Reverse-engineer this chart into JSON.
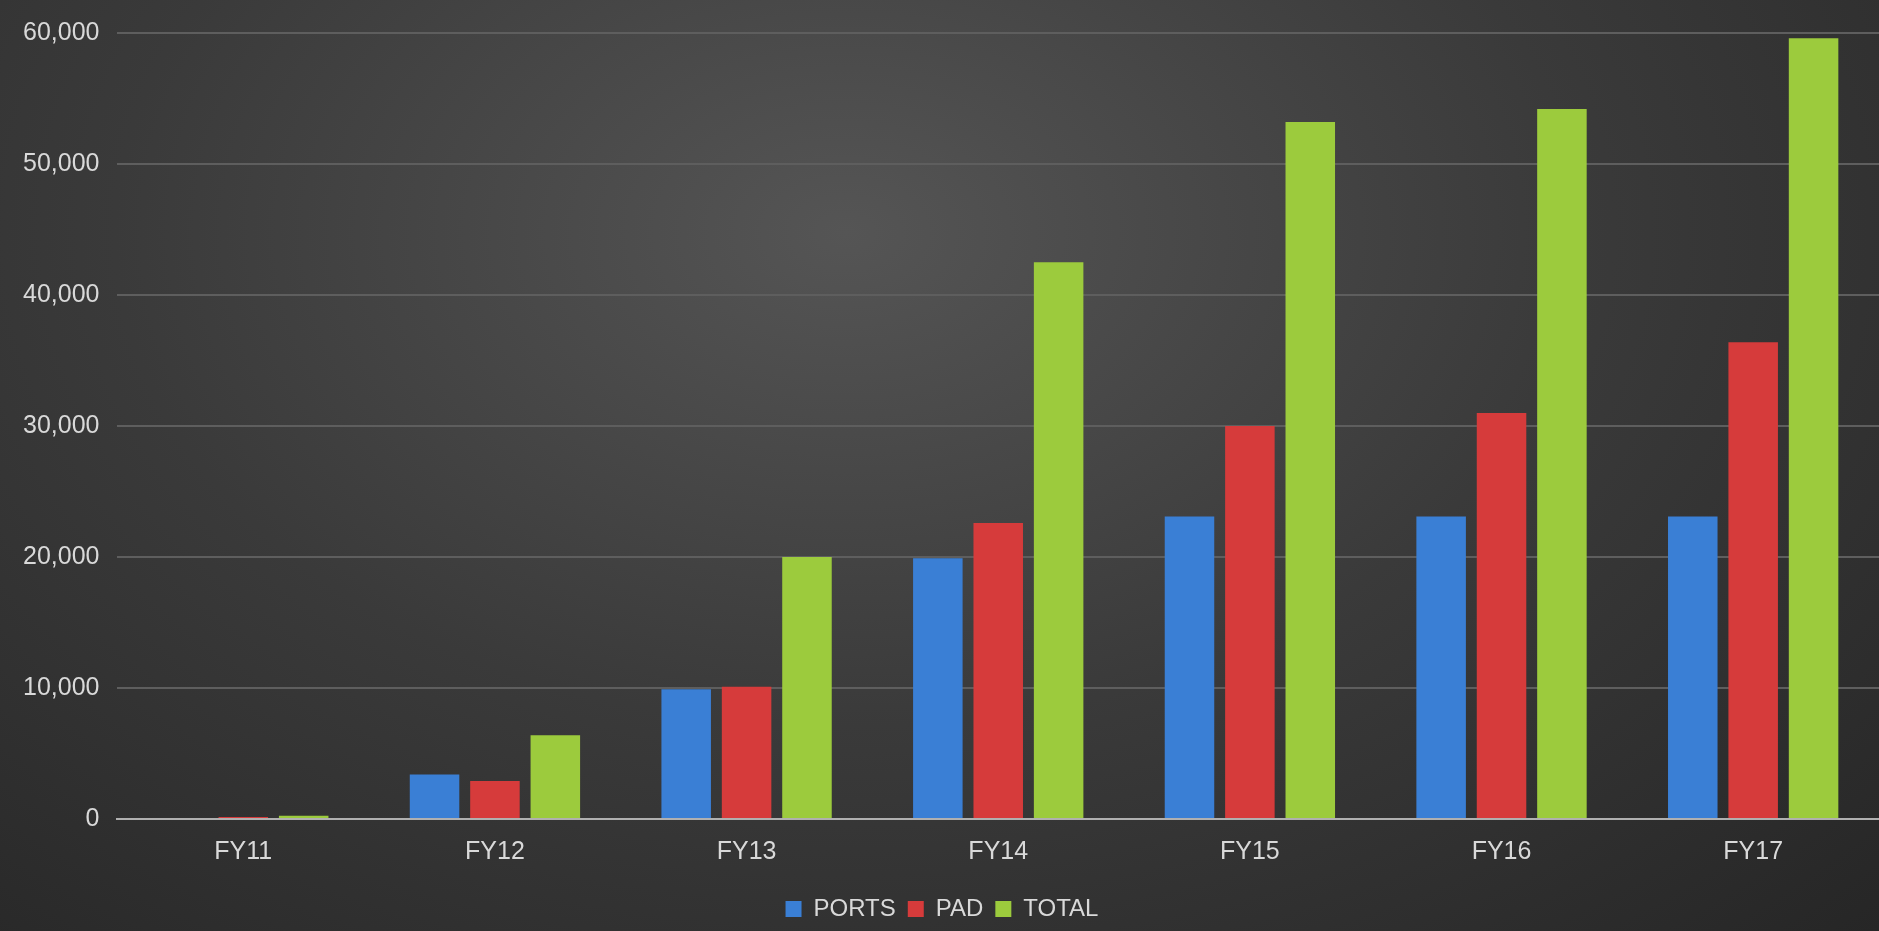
{
  "chart_data": {
    "type": "bar",
    "categories": [
      "FY11",
      "FY12",
      "FY13",
      "FY14",
      "FY15",
      "FY16",
      "FY17"
    ],
    "series": [
      {
        "name": "PORTS",
        "color": "#3a7fd5",
        "values": [
          null,
          3400,
          9900,
          19900,
          23100,
          23100,
          23100
        ]
      },
      {
        "name": "PAD",
        "color": "#d63b3b",
        "values": [
          150,
          2900,
          10100,
          22600,
          30000,
          31000,
          36400
        ]
      },
      {
        "name": "TOTAL",
        "color": "#9ccb3d",
        "values": [
          250,
          6400,
          20000,
          42500,
          53200,
          54200,
          59600
        ]
      }
    ],
    "ylim": [
      0,
      60000
    ],
    "yticks": [
      {
        "value": 0,
        "label": "0"
      },
      {
        "value": 10000,
        "label": "10,000"
      },
      {
        "value": 20000,
        "label": "20,000"
      },
      {
        "value": 30000,
        "label": "30,000"
      },
      {
        "value": 40000,
        "label": "40,000"
      },
      {
        "value": 50000,
        "label": "50,000"
      },
      {
        "value": 60000,
        "label": "60,000"
      }
    ],
    "grid": "y",
    "legend": "bottom"
  }
}
